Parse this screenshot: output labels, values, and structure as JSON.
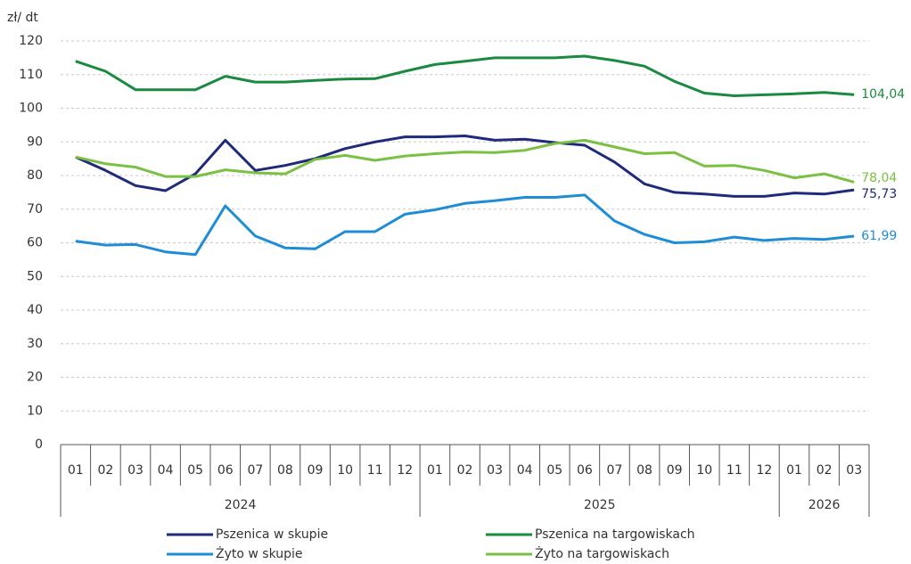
{
  "chart_data": {
    "type": "line",
    "y_label": "zł/ dt",
    "categories": [
      "01",
      "02",
      "03",
      "04",
      "05",
      "06",
      "07",
      "08",
      "09",
      "10",
      "11",
      "12",
      "01",
      "02",
      "03",
      "04",
      "05",
      "06",
      "07",
      "08",
      "09",
      "10",
      "11",
      "12",
      "01",
      "02",
      "03"
    ],
    "x_groups": [
      "2024",
      "2025",
      "2026"
    ],
    "ylim": [
      0,
      120
    ],
    "yticks": [
      0,
      10,
      20,
      30,
      40,
      50,
      60,
      70,
      80,
      90,
      100,
      110,
      120
    ],
    "grid": true,
    "series": [
      {
        "name": "Pszenica w skupie",
        "color": "#1f2a7a",
        "values": [
          85.5,
          81.5,
          77,
          75.5,
          80.5,
          90.5,
          81.5,
          83,
          85,
          88,
          90,
          91.5,
          91.5,
          91.8,
          90.5,
          90.8,
          89.8,
          89,
          84,
          77.5,
          75,
          74.5,
          73.8,
          73.8,
          74.8,
          74.5,
          75.73
        ],
        "value_labels": [
          null,
          null,
          null,
          null,
          null,
          null,
          null,
          null,
          null,
          null,
          null,
          null,
          null,
          null,
          null,
          null,
          null,
          null,
          null,
          null,
          null,
          null,
          null,
          null,
          null,
          null,
          "75,73"
        ]
      },
      {
        "name": "Pszenica na targowiskach",
        "color": "#1a8a3e",
        "values": [
          114,
          111,
          105.5,
          105.5,
          105.5,
          109.5,
          107.8,
          107.8,
          108.3,
          108.7,
          108.8,
          111,
          113,
          114,
          115,
          115,
          115,
          115.5,
          114.2,
          112.5,
          108,
          104.5,
          103.7,
          104,
          104.3,
          104.7,
          104.04
        ],
        "value_labels": [
          null,
          null,
          null,
          null,
          null,
          null,
          null,
          null,
          null,
          null,
          null,
          null,
          null,
          null,
          null,
          null,
          null,
          null,
          null,
          null,
          null,
          null,
          null,
          null,
          null,
          null,
          "104,04"
        ]
      },
      {
        "name": "Żyto w skupie",
        "color": "#1f8dd6",
        "values": [
          60.5,
          59.3,
          59.5,
          57.3,
          56.5,
          71,
          62,
          58.5,
          58.2,
          63.3,
          63.3,
          68.5,
          69.8,
          71.7,
          72.5,
          73.5,
          73.5,
          74.2,
          66.5,
          62.5,
          60,
          60.3,
          61.7,
          60.7,
          61.3,
          61,
          61.99
        ],
        "value_labels": [
          null,
          null,
          null,
          null,
          null,
          null,
          null,
          null,
          null,
          null,
          null,
          null,
          null,
          null,
          null,
          null,
          null,
          null,
          null,
          null,
          null,
          null,
          null,
          null,
          null,
          null,
          "61,99"
        ]
      },
      {
        "name": "Żyto na targowiskach",
        "color": "#7ac143",
        "values": [
          85.5,
          83.5,
          82.5,
          79.7,
          79.7,
          81.7,
          80.8,
          80.5,
          84.8,
          86,
          84.5,
          85.8,
          86.5,
          87,
          86.8,
          87.5,
          89.5,
          90.5,
          88.5,
          86.5,
          86.8,
          82.8,
          83,
          81.5,
          79.3,
          80.5,
          78.04
        ],
        "value_labels": [
          null,
          null,
          null,
          null,
          null,
          null,
          null,
          null,
          null,
          null,
          null,
          null,
          null,
          null,
          null,
          null,
          null,
          null,
          null,
          null,
          null,
          null,
          null,
          null,
          null,
          null,
          "78,04"
        ]
      }
    ]
  }
}
